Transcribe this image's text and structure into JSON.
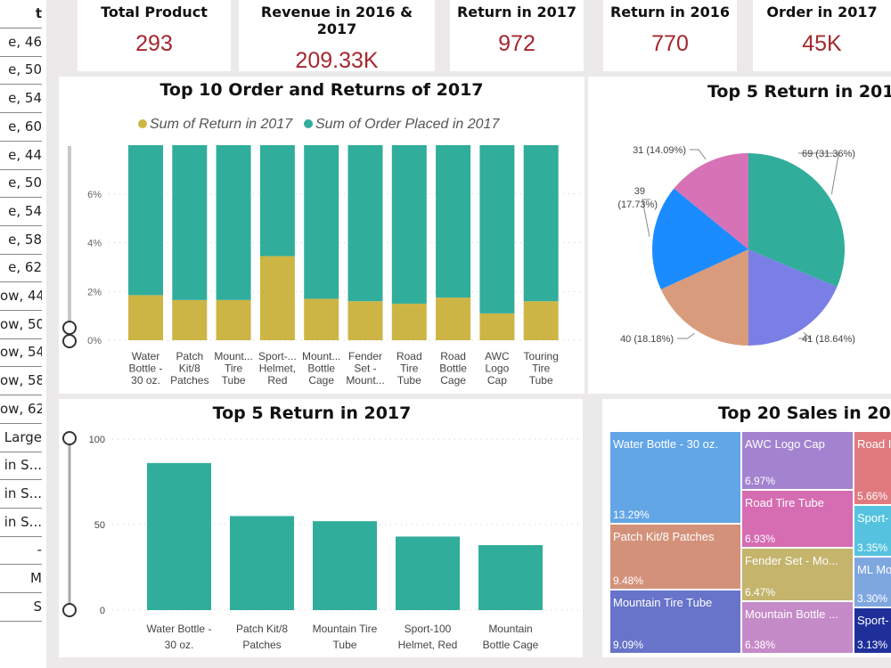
{
  "left_table": {
    "header": "t",
    "rows": [
      "e, 46",
      "e, 50",
      "e, 54",
      "e, 60",
      "e, 44",
      "e, 50",
      "e, 54",
      "e, 58",
      "e, 62",
      "ow, 44",
      "ow, 50",
      "ow, 54",
      "ow, 58",
      "ow, 62",
      "Large",
      "in S...",
      "in S...",
      "in S...",
      "-",
      "M",
      "S"
    ]
  },
  "kpis": [
    {
      "title": "Total Product",
      "value": "293"
    },
    {
      "title": "Revenue in 2016 & 2017",
      "value": "209.33K"
    },
    {
      "title": "Return in 2017",
      "value": "972"
    },
    {
      "title": "Return in 2016",
      "value": "770"
    },
    {
      "title": "Order in 2017",
      "value": "45K"
    }
  ],
  "chart_data": [
    {
      "type": "bar",
      "stacked": true,
      "title": "Top 10 Order and Returns of 2017",
      "categories": [
        "Water Bottle - 30 oz.",
        "Patch Kit/8 Patches",
        "Mount... Tire Tube",
        "Sport-... Helmet, Red",
        "Mount... Bottle Cage",
        "Fender Set - Mount...",
        "Road Tire Tube",
        "Road Bottle Cage",
        "AWC Logo Cap",
        "Touring Tire Tube"
      ],
      "series": [
        {
          "name": "Sum of Return in 2017",
          "color": "#cdb545",
          "values": [
            1.85,
            1.65,
            1.65,
            3.45,
            1.7,
            1.6,
            1.5,
            1.75,
            1.1,
            1.6
          ]
        },
        {
          "name": "Sum of Order Placed in 2017",
          "color": "#31ad9c",
          "values": [
            6.15,
            6.35,
            6.35,
            4.55,
            6.3,
            6.4,
            6.5,
            6.25,
            6.9,
            6.4
          ]
        }
      ],
      "yticks": [
        "0%",
        "2%",
        "4%",
        "6%"
      ],
      "ylim": [
        0,
        8
      ],
      "legend": "top",
      "grid": true
    },
    {
      "type": "pie",
      "title": "Top 5 Return in 201",
      "slices": [
        {
          "value": 69,
          "label": "69 (31.36%)",
          "color": "#31ad9c"
        },
        {
          "value": 41,
          "label": "41 (18.64%)",
          "color": "#7a7fe6"
        },
        {
          "value": 40,
          "label": "40 (18.18%)",
          "color": "#d89b7c"
        },
        {
          "value": 39,
          "label": "39 (17.73%)",
          "color": "#1a8cff"
        },
        {
          "value": 31,
          "label": "31 (14.09%)",
          "color": "#d672b5"
        }
      ]
    },
    {
      "type": "bar",
      "title": "Top 5 Return in 2017",
      "categories": [
        "Water Bottle - 30 oz.",
        "Patch Kit/8 Patches",
        "Mountain Tire Tube",
        "Sport-100 Helmet, Red",
        "Mountain Bottle Cage"
      ],
      "values": [
        86,
        55,
        52,
        43,
        38
      ],
      "color": "#31ad9c",
      "yticks": [
        "0",
        "50",
        "100"
      ],
      "ylim": [
        0,
        100
      ],
      "grid": true
    },
    {
      "type": "treemap",
      "title": "Top 20 Sales in 20",
      "cells": [
        {
          "name": "Water Bottle - 30 oz.",
          "pct": "13.29%",
          "color": "#62a6e6"
        },
        {
          "name": "Patch Kit/8 Patches",
          "pct": "9.48%",
          "color": "#d4917a"
        },
        {
          "name": "Mountain Tire Tube",
          "pct": "9.09%",
          "color": "#6774c9"
        },
        {
          "name": "AWC Logo Cap",
          "pct": "6.97%",
          "color": "#a383d0"
        },
        {
          "name": "Road Tire Tube",
          "pct": "6.93%",
          "color": "#d66cb2"
        },
        {
          "name": "Fender Set - Mo...",
          "pct": "6.47%",
          "color": "#c4b46c"
        },
        {
          "name": "Mountain Bottle ...",
          "pct": "6.38%",
          "color": "#c58ac8"
        },
        {
          "name": "Road I",
          "pct": "5.66%",
          "color": "#e07a7e"
        },
        {
          "name": "Sport-",
          "pct": "3.35%",
          "color": "#55c3e0"
        },
        {
          "name": "ML Mo",
          "pct": "3.30%",
          "color": "#7ea7e0"
        },
        {
          "name": "Sport-",
          "pct": "3.13%",
          "color": "#1f2f9a"
        }
      ]
    }
  ]
}
